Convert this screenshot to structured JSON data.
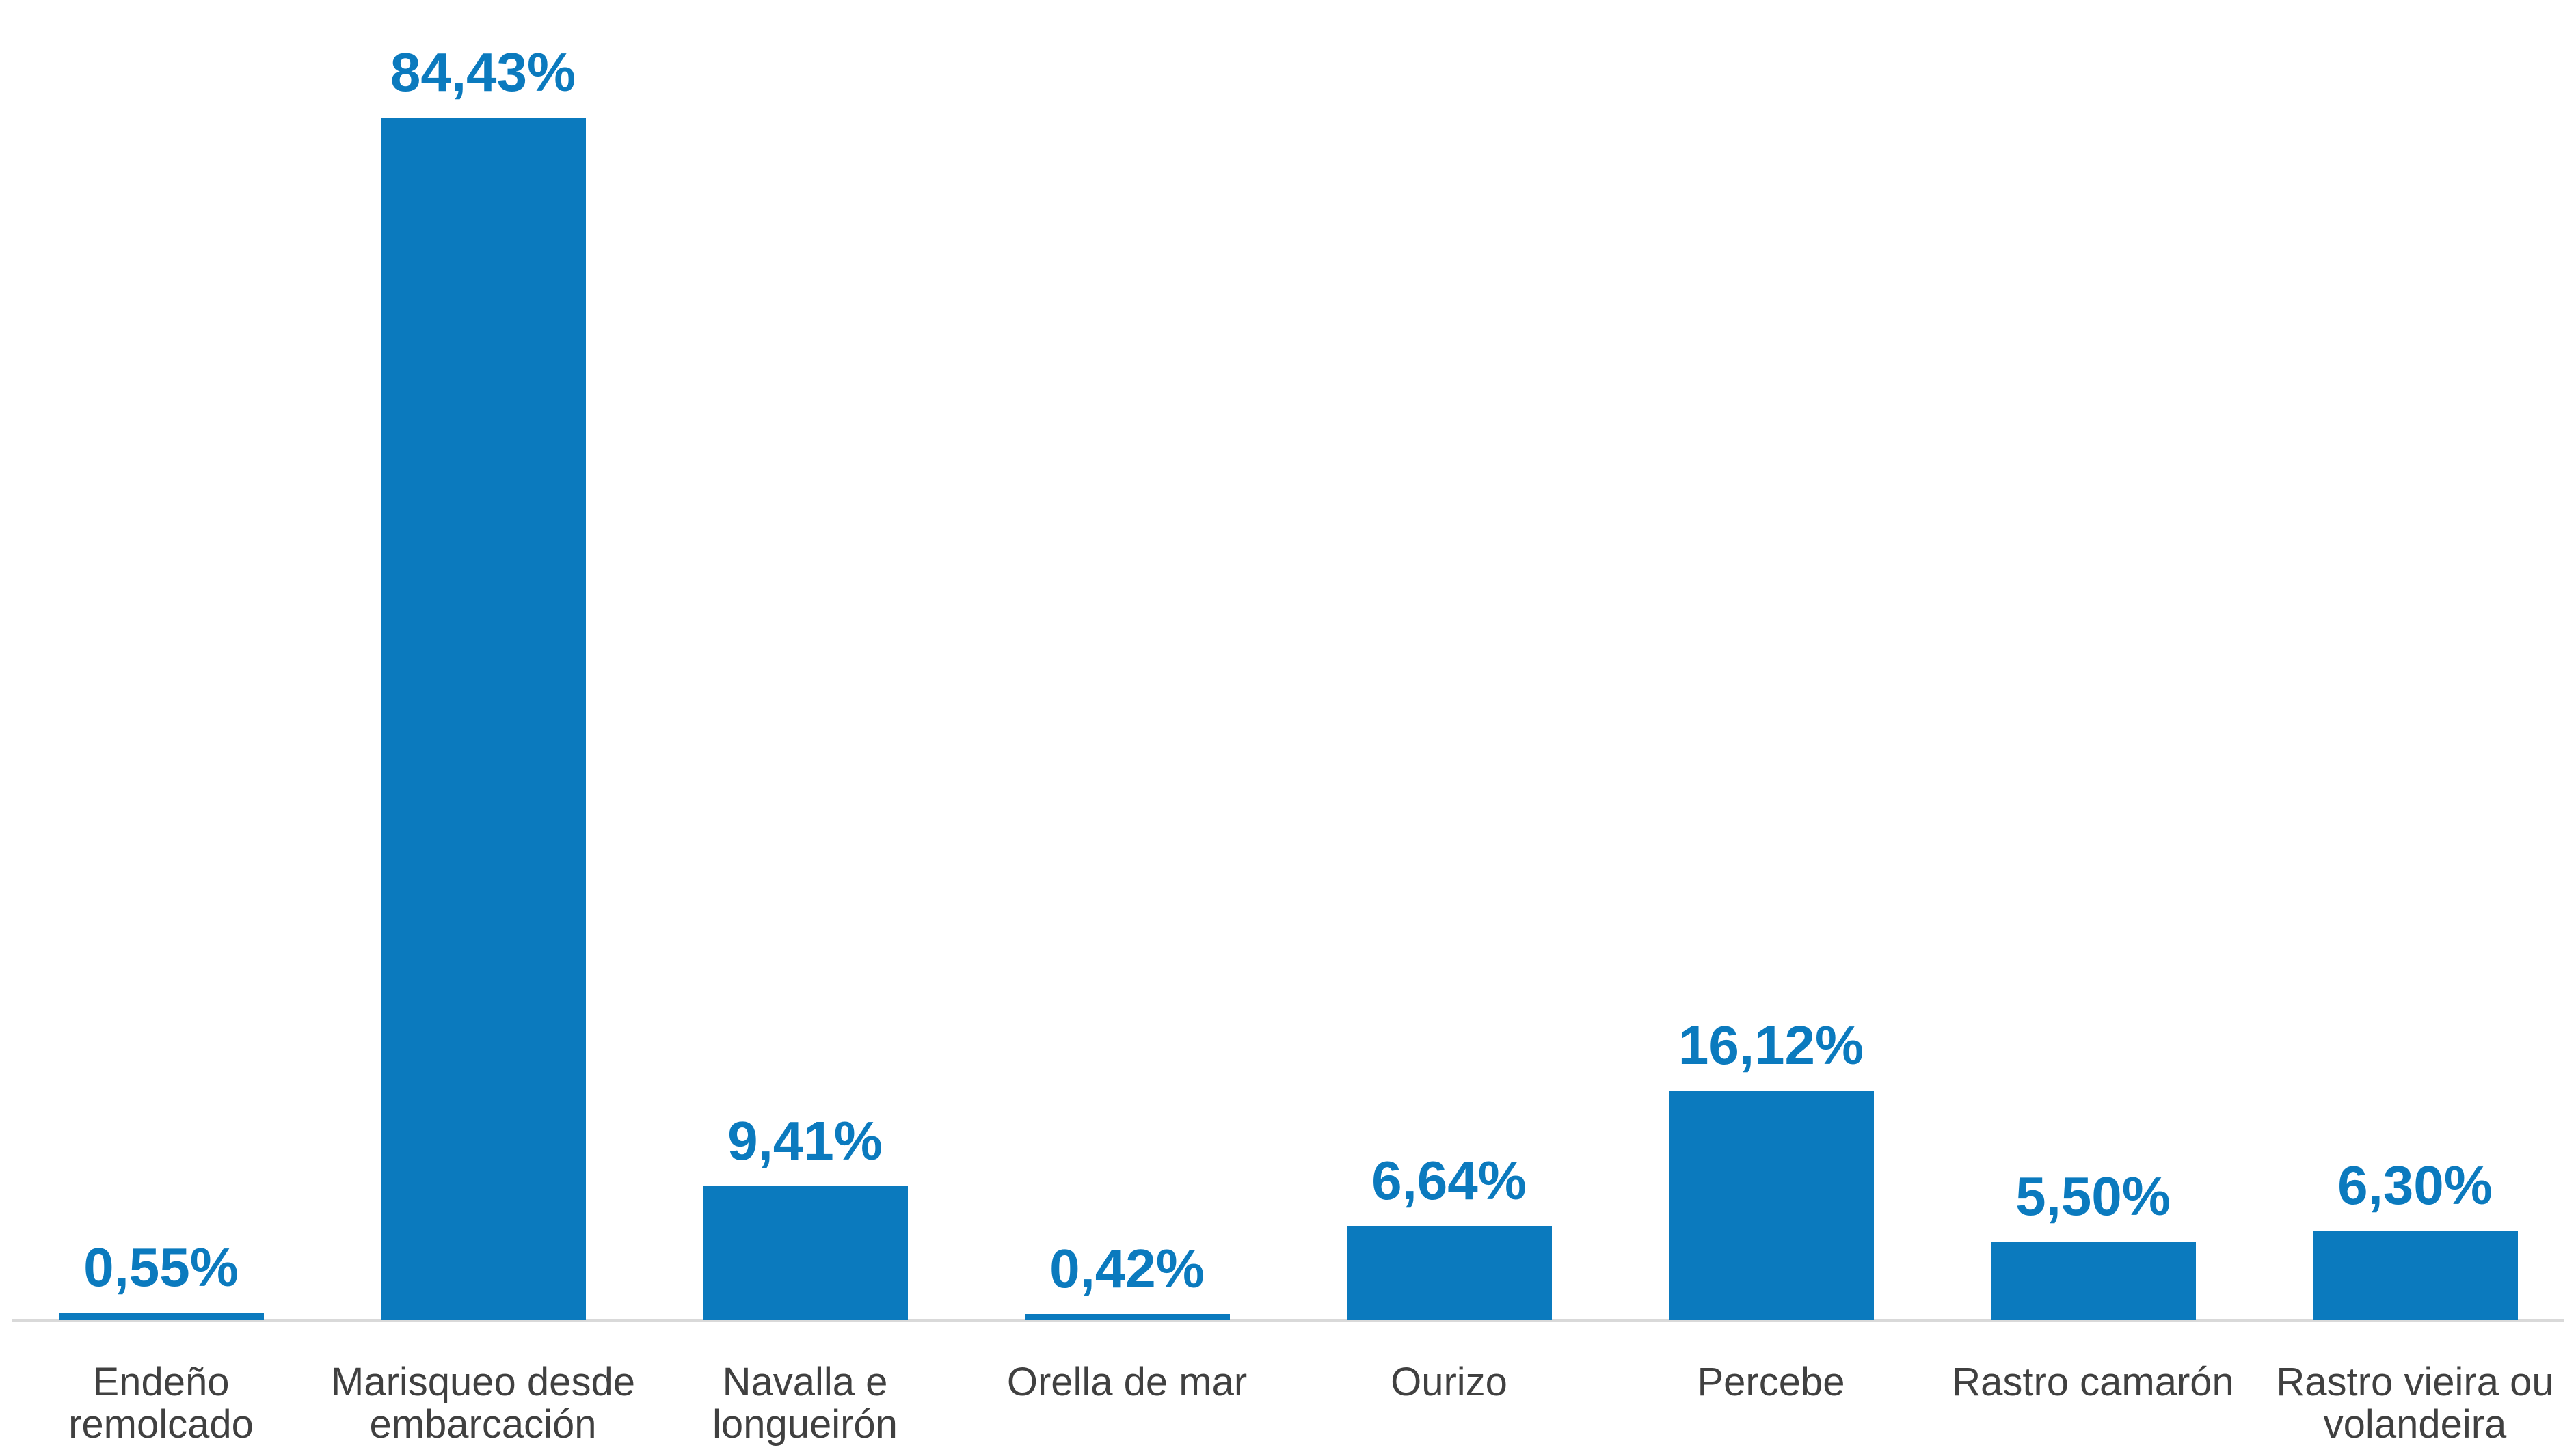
{
  "chart_data": {
    "type": "bar",
    "title": "",
    "xlabel": "",
    "ylabel": "",
    "categories": [
      "Endeño remolcado",
      "Marisqueo desde embarcación",
      "Navalla e longueirón",
      "Orella de mar",
      "Ourizo",
      "Percebe",
      "Rastro camarón",
      "Rastro vieira ou volandeira"
    ],
    "category_display": [
      "Endeño remolcado",
      "Marisqueo desde\nembarcación",
      "Navalla e\nlongueirón",
      "Orella de mar",
      "Ourizo",
      "Percebe",
      "Rastro camarón",
      "Rastro vieira ou\nvolandeira"
    ],
    "values": [
      0.55,
      84.43,
      9.41,
      0.42,
      6.64,
      16.12,
      5.5,
      6.3
    ],
    "value_labels": [
      "0,55%",
      "84,43%",
      "9,41%",
      "0,42%",
      "6,64%",
      "16,12%",
      "5,50%",
      "6,30%"
    ],
    "ylim": [
      0,
      90
    ],
    "grid": false,
    "legend": false,
    "colors": {
      "bar": "#0b7abe",
      "value_label": "#0b7abe",
      "category_label": "#404040",
      "axis_line": "#d9d9d9",
      "background": "#ffffff"
    }
  }
}
